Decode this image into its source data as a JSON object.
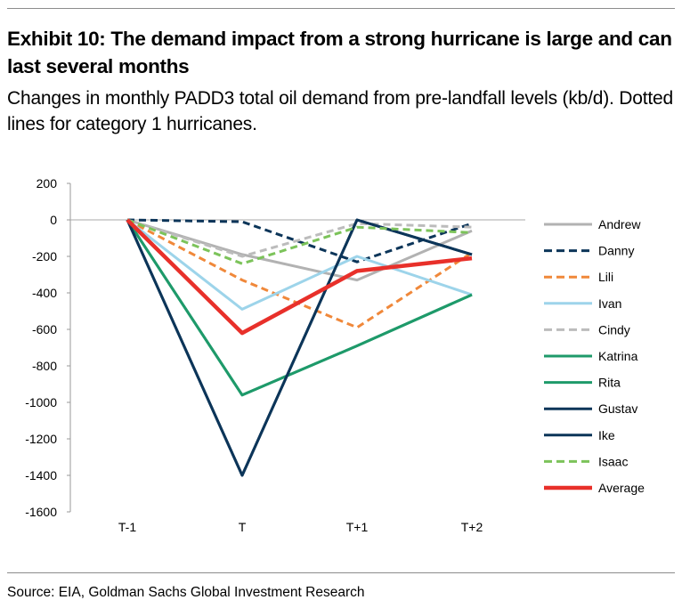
{
  "header": {
    "title": "Exhibit 10: The demand impact from a strong hurricane is large and can last several months",
    "subtitle": "Changes in monthly PADD3 total oil demand from pre-landfall levels (kb/d). Dotted lines for category 1 hurricanes."
  },
  "footer": {
    "source": "Source: EIA, Goldman Sachs Global Investment Research"
  },
  "chart_data": {
    "type": "line",
    "categories": [
      "T-1",
      "T",
      "T+1",
      "T+2"
    ],
    "ylim": [
      -1600,
      200
    ],
    "yticks": [
      200,
      0,
      -200,
      -400,
      -600,
      -800,
      -1000,
      -1200,
      -1400,
      -1600
    ],
    "grid": "horizontal line at 0 only",
    "legend_position": "right",
    "series": [
      {
        "name": "Andrew",
        "color": "#b2b2b2",
        "dash": "solid",
        "values": [
          0,
          -190,
          -330,
          -60
        ]
      },
      {
        "name": "Danny",
        "color": "#0c3559",
        "dash": "dashed",
        "values": [
          0,
          -10,
          -230,
          -20
        ]
      },
      {
        "name": "Lili",
        "color": "#f0883a",
        "dash": "dashed",
        "values": [
          0,
          -330,
          -590,
          -180
        ]
      },
      {
        "name": "Ivan",
        "color": "#9dd4ea",
        "dash": "solid",
        "values": [
          0,
          -490,
          -200,
          -410
        ]
      },
      {
        "name": "Cindy",
        "color": "#bcbcbc",
        "dash": "dashed",
        "values": [
          0,
          -200,
          -20,
          -40
        ]
      },
      {
        "name": "Katrina",
        "color": "#1e9a6a",
        "dash": "solid",
        "values": [
          0,
          -960,
          -690,
          -410
        ]
      },
      {
        "name": "Rita",
        "color": "#1e9a6a",
        "dash": "solid",
        "values": [
          0,
          -960,
          -690,
          -410
        ]
      },
      {
        "name": "Gustav",
        "color": "#0c3559",
        "dash": "solid",
        "values": [
          0,
          -1400,
          0,
          -190
        ]
      },
      {
        "name": "Ike",
        "color": "#0c3559",
        "dash": "solid",
        "values": [
          0,
          -1400,
          0,
          -190
        ]
      },
      {
        "name": "Isaac",
        "color": "#7cc35a",
        "dash": "dashed",
        "values": [
          0,
          -240,
          -40,
          -70
        ]
      },
      {
        "name": "Average",
        "color": "#e8302a",
        "dash": "solid",
        "values": [
          0,
          -620,
          -280,
          -210
        ]
      }
    ]
  }
}
